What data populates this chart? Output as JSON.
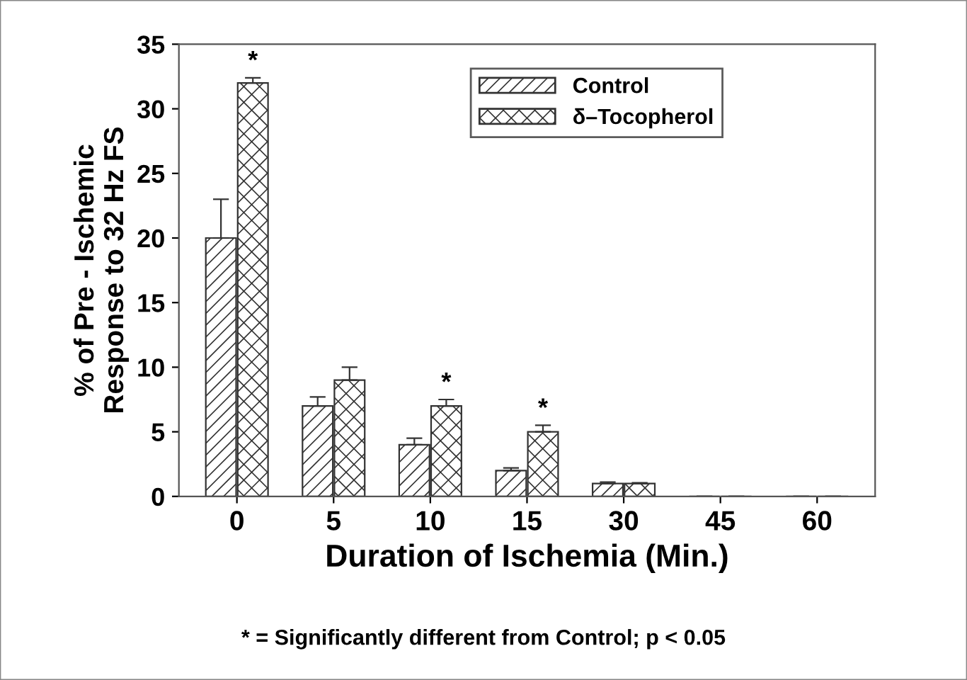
{
  "chart_data": {
    "type": "bar",
    "xlabel": "Duration of Ischemia (Min.)",
    "ylabel": "% of Pre - Ischemic\nResponse to 32 Hz FS",
    "categories": [
      "0",
      "5",
      "10",
      "15",
      "30",
      "45",
      "60"
    ],
    "series": [
      {
        "name": "Control",
        "color": "#333333",
        "values": [
          20,
          7,
          4,
          2,
          1,
          0,
          0
        ],
        "errors": [
          3,
          0.7,
          0.5,
          0.2,
          0.1,
          null,
          null
        ]
      },
      {
        "name": "δ–Tocopherol",
        "color": "#333333",
        "values": [
          32,
          9,
          7,
          5,
          1,
          0,
          0
        ],
        "errors": [
          0.4,
          1,
          0.5,
          0.5,
          0.05,
          null,
          null
        ]
      }
    ],
    "ylim": [
      0,
      35
    ],
    "yticks": [
      0,
      5,
      10,
      15,
      20,
      25,
      30,
      35
    ],
    "grid": false,
    "legend": "top right",
    "annotations": [
      {
        "text": "*",
        "x": "0",
        "y": 32.4
      },
      {
        "text": "*",
        "x": "10",
        "y": 7.5
      },
      {
        "text": "*",
        "x": "15",
        "y": 5.5
      },
      "* = Significantly different from Control; p < 0.05"
    ]
  }
}
